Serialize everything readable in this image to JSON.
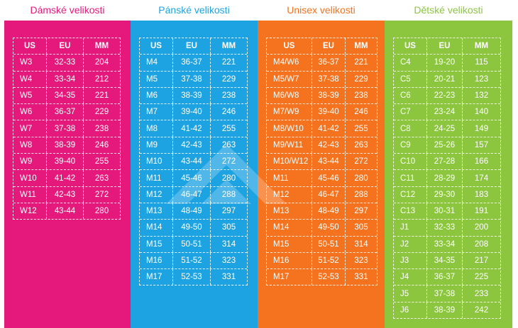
{
  "colors": {
    "women": "#e5197c",
    "men": "#1ea3e2",
    "unisex": "#f5731f",
    "kids": "#8cc63f"
  },
  "columns": [
    {
      "key": "women",
      "title": "Dámské velikosti",
      "headers": [
        "US",
        "EU",
        "MM"
      ],
      "rows": [
        [
          "W3",
          "32-33",
          "204"
        ],
        [
          "W4",
          "33-34",
          "212"
        ],
        [
          "W5",
          "34-35",
          "221"
        ],
        [
          "W6",
          "36-37",
          "229"
        ],
        [
          "W7",
          "37-38",
          "238"
        ],
        [
          "W8",
          "38-39",
          "246"
        ],
        [
          "W9",
          "39-40",
          "255"
        ],
        [
          "W10",
          "41-42",
          "263"
        ],
        [
          "W11",
          "42-43",
          "272"
        ],
        [
          "W12",
          "43-44",
          "280"
        ]
      ]
    },
    {
      "key": "men",
      "title": "Pánské velikosti",
      "headers": [
        "US",
        "EU",
        "MM"
      ],
      "rows": [
        [
          "M4",
          "36-37",
          "221"
        ],
        [
          "M5",
          "37-38",
          "229"
        ],
        [
          "M6",
          "38-39",
          "238"
        ],
        [
          "M7",
          "39-40",
          "246"
        ],
        [
          "M8",
          "41-42",
          "255"
        ],
        [
          "M9",
          "42-43",
          "263"
        ],
        [
          "M10",
          "43-44",
          "272"
        ],
        [
          "M11",
          "45-46",
          "280"
        ],
        [
          "M12",
          "46-47",
          "288"
        ],
        [
          "M13",
          "48-49",
          "297"
        ],
        [
          "M14",
          "49-50",
          "305"
        ],
        [
          "M15",
          "50-51",
          "314"
        ],
        [
          "M16",
          "51-52",
          "323"
        ],
        [
          "M17",
          "52-53",
          "331"
        ]
      ]
    },
    {
      "key": "unisex",
      "title": "Unisex velikosti",
      "headers": [
        "US",
        "EU",
        "MM"
      ],
      "rows": [
        [
          "M4/W6",
          "36-37",
          "221"
        ],
        [
          "M5/W7",
          "37-38",
          "229"
        ],
        [
          "M6/W8",
          "38-39",
          "238"
        ],
        [
          "M7/W9",
          "39-40",
          "246"
        ],
        [
          "M8/W10",
          "41-42",
          "255"
        ],
        [
          "M9/W11",
          "42-43",
          "263"
        ],
        [
          "M10/W12",
          "43-44",
          "272"
        ],
        [
          "M11",
          "45-46",
          "280"
        ],
        [
          "M12",
          "46-47",
          "288"
        ],
        [
          "M13",
          "48-49",
          "297"
        ],
        [
          "M14",
          "49-50",
          "305"
        ],
        [
          "M15",
          "50-51",
          "314"
        ],
        [
          "M16",
          "51-52",
          "323"
        ],
        [
          "M17",
          "52-53",
          "331"
        ]
      ]
    },
    {
      "key": "kids",
      "title": "Dětské velikosti",
      "headers": [
        "US",
        "EU",
        "MM"
      ],
      "rows": [
        [
          "C4",
          "19-20",
          "115"
        ],
        [
          "C5",
          "20-21",
          "123"
        ],
        [
          "C6",
          "22-23",
          "132"
        ],
        [
          "C7",
          "23-24",
          "140"
        ],
        [
          "C8",
          "24-25",
          "149"
        ],
        [
          "C9",
          "25-26",
          "157"
        ],
        [
          "C10",
          "27-28",
          "166"
        ],
        [
          "C11",
          "28-29",
          "174"
        ],
        [
          "C12",
          "29-30",
          "183"
        ],
        [
          "C13",
          "30-31",
          "191"
        ],
        [
          "J1",
          "32-33",
          "200"
        ],
        [
          "J2",
          "33-34",
          "208"
        ],
        [
          "J3",
          "34-35",
          "217"
        ],
        [
          "J4",
          "36-37",
          "225"
        ],
        [
          "J5",
          "37-38",
          "233"
        ],
        [
          "J6",
          "38-39",
          "242"
        ]
      ]
    }
  ]
}
